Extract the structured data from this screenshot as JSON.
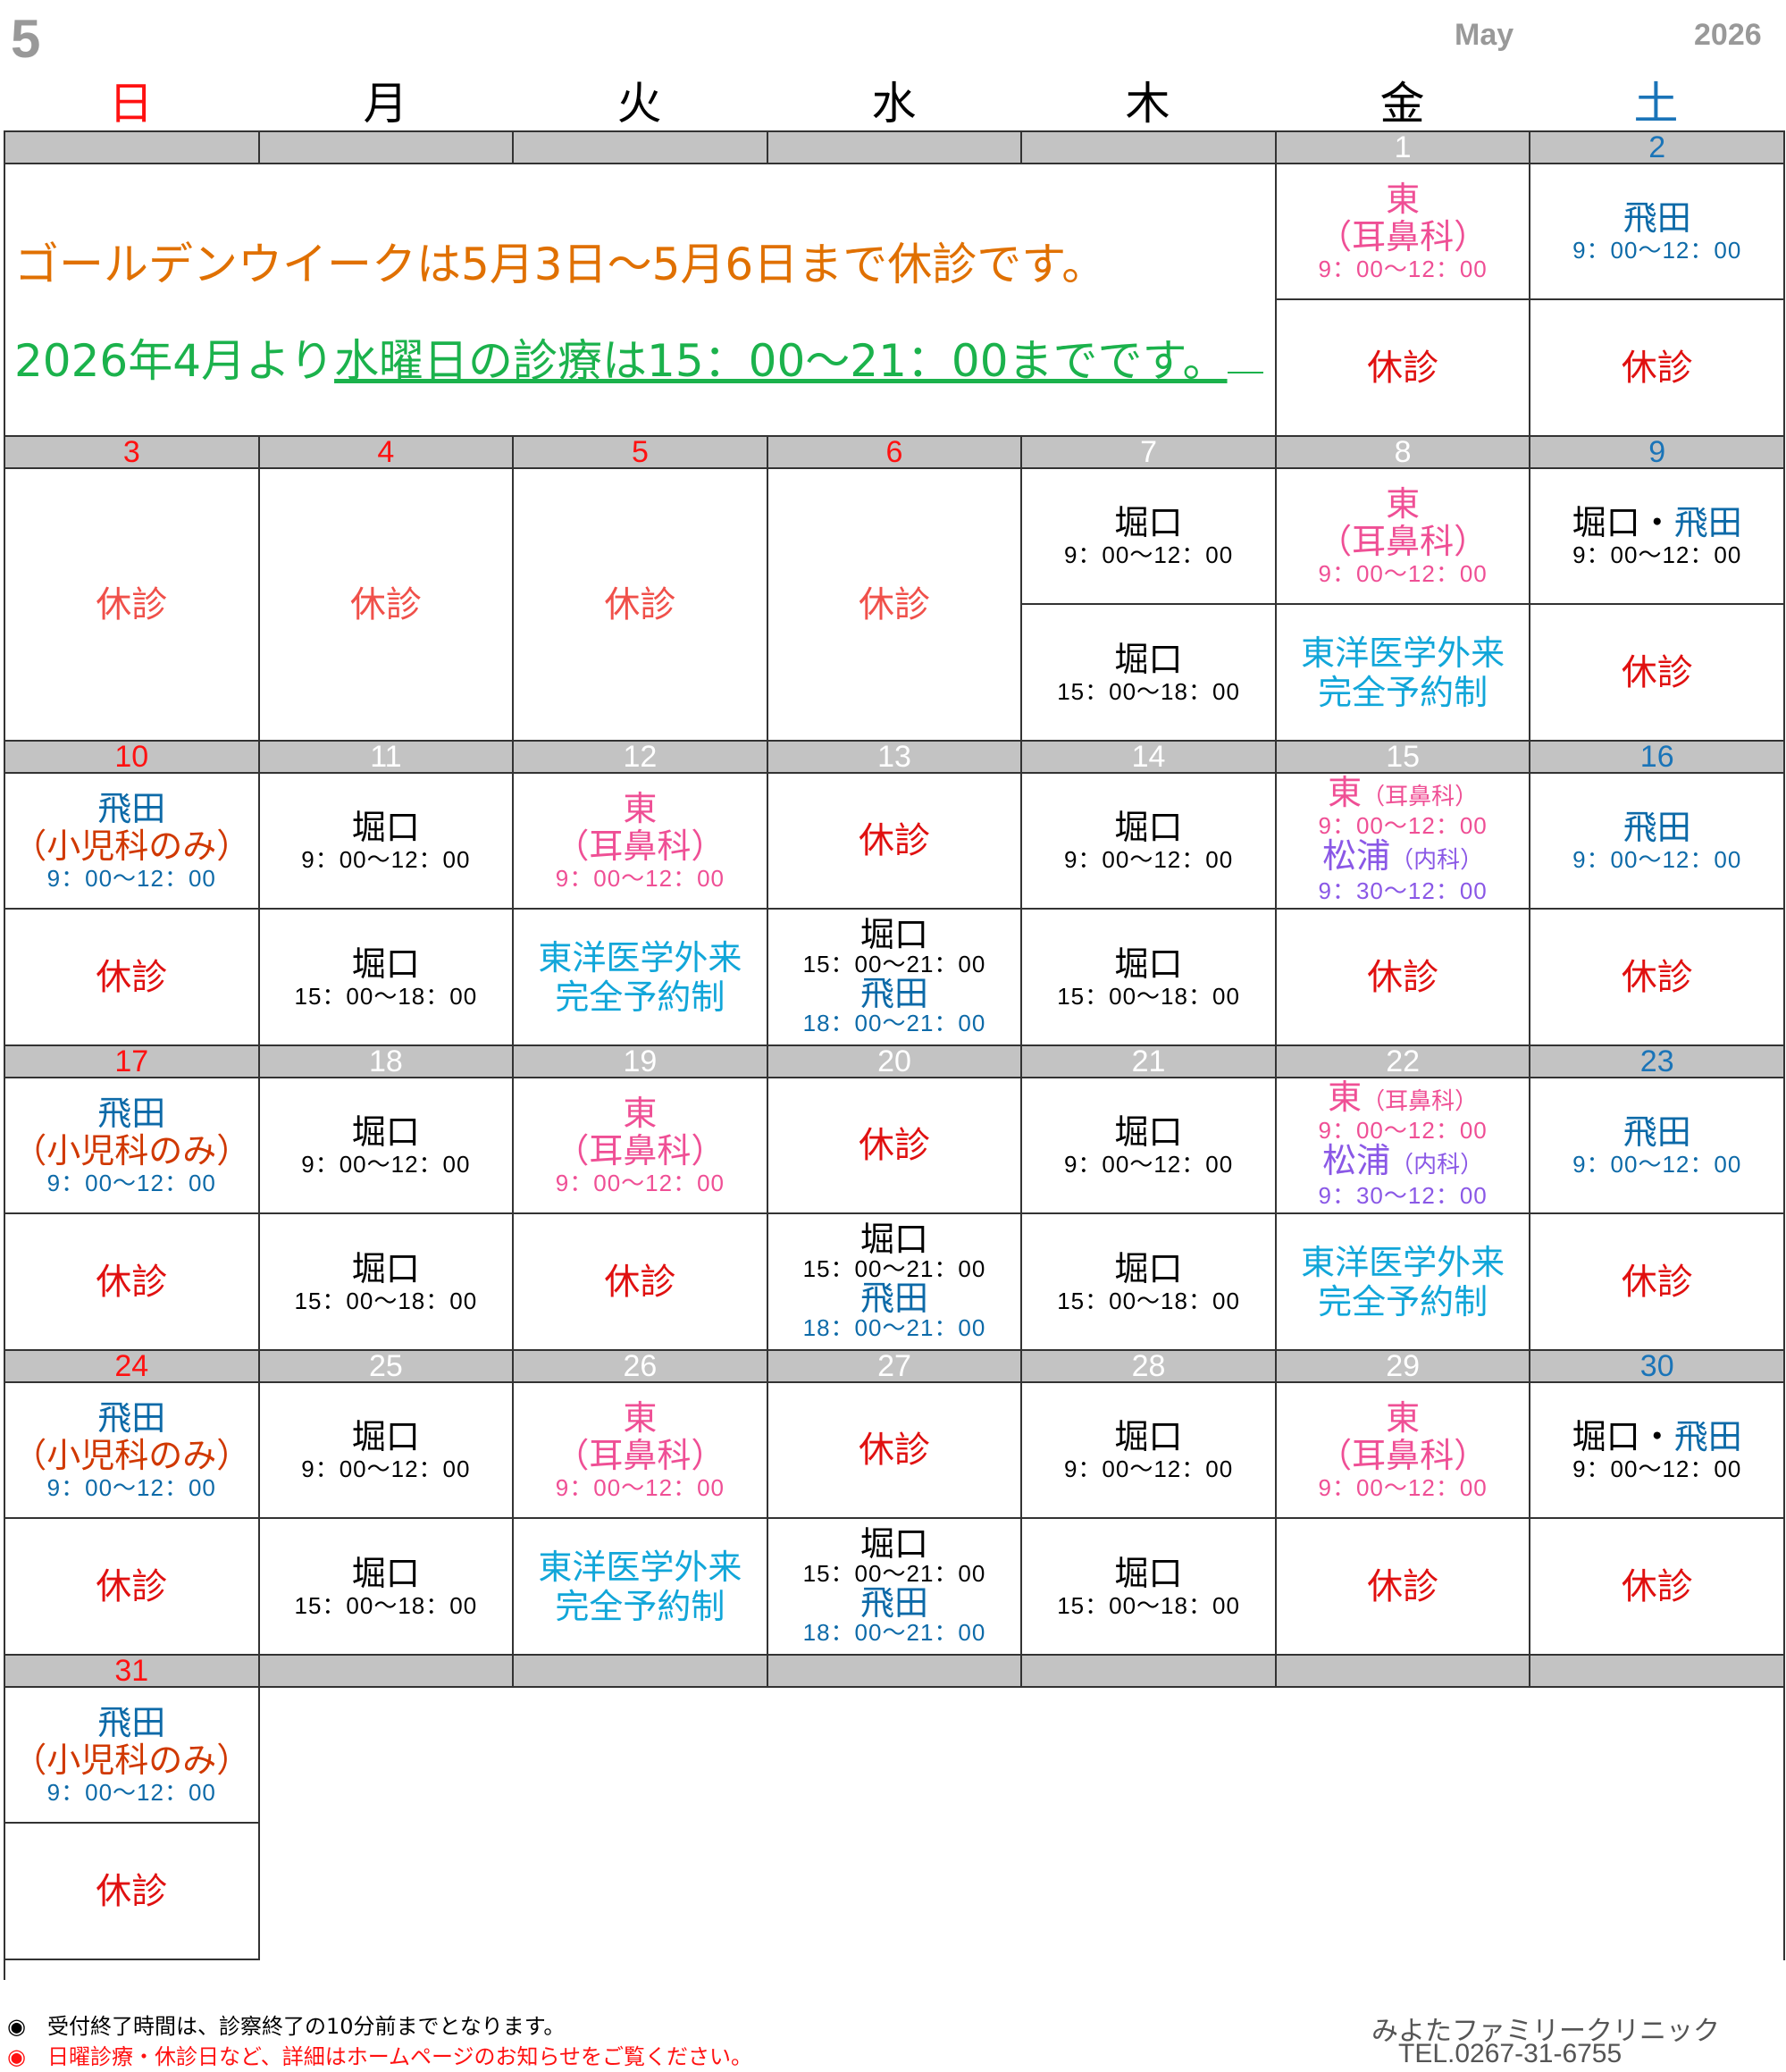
{
  "header": {
    "month_num": "5",
    "month_en": "May",
    "year": "2026"
  },
  "weekdays": [
    "日",
    "月",
    "火",
    "水",
    "木",
    "金",
    "土"
  ],
  "notice": {
    "line1": "ゴールデンウイークは5月3日～5月6日まで休診です。",
    "line2_pre": "2026年4月より",
    "line2_ul": "水曜日の診療は15：00～21：00までです。"
  },
  "labels": {
    "closed": "休診",
    "higashi": "東",
    "ent": "（耳鼻科）",
    "ent_small": "（耳鼻科）",
    "hida": "飛田",
    "pediatric": "（小児科のみ）",
    "horiguchi": "堀口",
    "dot": "・",
    "matsuura": "松浦",
    "internal": "（内科）",
    "toyo1": "東洋医学外来",
    "toyo2": "完全予約制"
  },
  "times": {
    "am": "9：00～12：00",
    "am2": "9：30～12：00",
    "pm": "15：00～18：00",
    "wed": "15：00～21：00",
    "eve": "18：00～21：00"
  },
  "dates": [
    "1",
    "2",
    "3",
    "4",
    "5",
    "6",
    "7",
    "8",
    "9",
    "10",
    "11",
    "12",
    "13",
    "14",
    "15",
    "16",
    "17",
    "18",
    "19",
    "20",
    "21",
    "22",
    "23",
    "24",
    "25",
    "26",
    "27",
    "28",
    "29",
    "30",
    "31"
  ],
  "footer": {
    "note1": "◉　受付終了時間は、診察終了の10分前までとなります。",
    "note2": "◉　日曜診療・休診日など、詳細はホームページのお知らせをご覧ください。",
    "clinic": "みよたファミリークリニック",
    "tel": "TEL.0267-31-6755"
  },
  "colors": {
    "sunday": "#ff1111",
    "saturday": "#1a74b8",
    "ent": "#ef4f95",
    "hida": "#0d6aa8",
    "toyo": "#11a6d9",
    "matsuura": "#8a58e6",
    "notice1": "#e07000",
    "notice2": "#1bb24c",
    "header_bg": "#c3c3c3"
  }
}
